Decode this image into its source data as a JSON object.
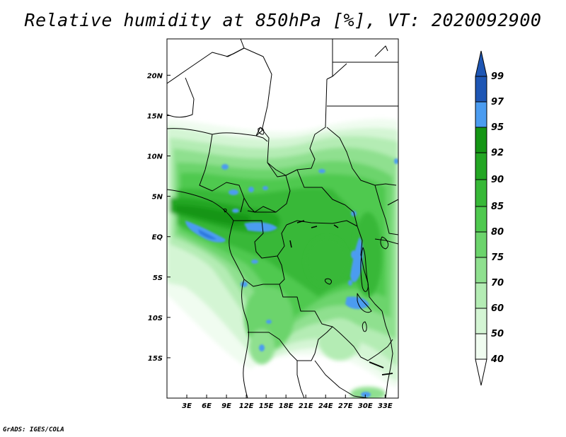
{
  "title": "Relative humidity at 850hPa [%], VT: 2020092900",
  "credit": "GrADS: IGES/COLA",
  "map": {
    "lat_labels": [
      "20N",
      "15N",
      "10N",
      "5N",
      "EQ",
      "5S",
      "10S",
      "15S"
    ],
    "lon_labels": [
      "3E",
      "6E",
      "9E",
      "12E",
      "15E",
      "18E",
      "21E",
      "24E",
      "27E",
      "30E",
      "33E"
    ],
    "lat_range": [
      -20,
      24.5
    ],
    "lon_range": [
      0,
      35
    ]
  },
  "legend": {
    "levels": [
      "99",
      "97",
      "95",
      "92",
      "90",
      "85",
      "80",
      "75",
      "70",
      "60",
      "50",
      "40"
    ],
    "colors": {
      "c40": "#f0fcf0",
      "c50": "#d4f5d4",
      "c60": "#b4ecb4",
      "c70": "#8fe08f",
      "c75": "#6cd46c",
      "c80": "#4fc94f",
      "c85": "#37b837",
      "c90": "#23a623",
      "c92": "#149514",
      "c95": "#4b9cf0",
      "c97": "#2d79e0",
      "c99": "#1e56b4"
    }
  }
}
